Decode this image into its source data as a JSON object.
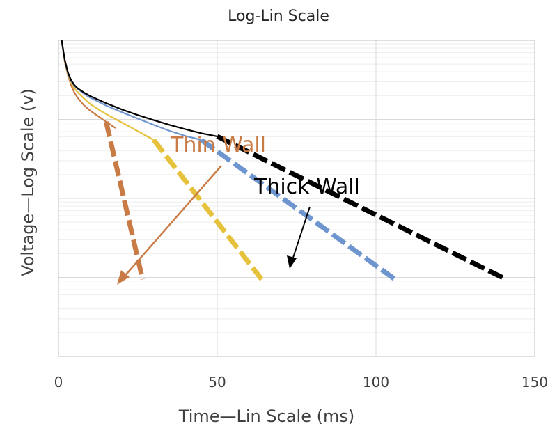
{
  "chart_data": {
    "type": "line",
    "title": "Log-Lin Scale",
    "xlabel": "Time—Lin Scale (ms)",
    "ylabel": "Voltage—Log Scale (v)",
    "xlim": [
      0,
      150
    ],
    "x_ticks": [
      "0",
      "50",
      "100",
      "150"
    ],
    "y_scale": "log",
    "y_decades": 4,
    "y_tick_labels_shown": false,
    "grid": true,
    "legend": "none",
    "colors": {
      "orange": "#c97b45",
      "yellow": "#e6c23c",
      "blue": "#6f95cf",
      "black": "#000000",
      "grid": "#d9d9d9",
      "minor_grid": "#eeeeee"
    },
    "series": [
      {
        "color": "orange",
        "curve": [
          [
            1,
            1.0
          ],
          [
            2,
            0.725
          ],
          [
            3,
            0.555
          ],
          [
            4,
            0.43
          ],
          [
            5,
            0.34
          ],
          [
            6,
            0.275
          ],
          [
            8,
            0.18
          ],
          [
            10,
            0.11
          ],
          [
            12,
            0.055
          ],
          [
            15,
            -0.03
          ],
          [
            18,
            -0.11
          ]
        ],
        "tail": [
          [
            15,
            -0.03
          ],
          [
            26.5,
            -2.025
          ]
        ]
      },
      {
        "color": "yellow",
        "curve": [
          [
            1,
            1.0
          ],
          [
            2,
            0.735
          ],
          [
            3,
            0.57
          ],
          [
            4,
            0.465
          ],
          [
            5,
            0.395
          ],
          [
            6,
            0.345
          ],
          [
            8,
            0.265
          ],
          [
            10,
            0.195
          ],
          [
            13,
            0.115
          ],
          [
            16,
            0.045
          ],
          [
            20,
            -0.04
          ],
          [
            25,
            -0.15
          ],
          [
            30,
            -0.26
          ]
        ],
        "tail": [
          [
            30,
            -0.26
          ],
          [
            64,
            -2.025
          ]
        ]
      },
      {
        "color": "blue",
        "curve": [
          [
            1,
            1.0
          ],
          [
            2,
            0.745
          ],
          [
            3,
            0.58
          ],
          [
            4,
            0.485
          ],
          [
            5,
            0.425
          ],
          [
            6,
            0.385
          ],
          [
            8,
            0.325
          ],
          [
            10,
            0.275
          ],
          [
            15,
            0.175
          ],
          [
            20,
            0.09
          ],
          [
            25,
            0.01
          ],
          [
            30,
            -0.07
          ],
          [
            35,
            -0.145
          ],
          [
            40,
            -0.21
          ],
          [
            45,
            -0.26
          ]
        ],
        "tail": [
          [
            45,
            -0.26
          ],
          [
            106,
            -2.025
          ]
        ]
      },
      {
        "color": "black",
        "curve": [
          [
            1,
            1.0
          ],
          [
            2,
            0.75
          ],
          [
            3,
            0.59
          ],
          [
            4,
            0.495
          ],
          [
            5,
            0.435
          ],
          [
            6,
            0.395
          ],
          [
            8,
            0.34
          ],
          [
            10,
            0.295
          ],
          [
            15,
            0.205
          ],
          [
            20,
            0.125
          ],
          [
            25,
            0.055
          ],
          [
            30,
            -0.01
          ],
          [
            35,
            -0.07
          ],
          [
            40,
            -0.125
          ],
          [
            45,
            -0.175
          ],
          [
            50,
            -0.215
          ]
        ],
        "tail": [
          [
            50,
            -0.215
          ],
          [
            141,
            -2.025
          ]
        ]
      }
    ],
    "annotations": [
      {
        "text": "Thin Wall",
        "color": "orange"
      },
      {
        "text": "Thick Wall",
        "color": "black"
      }
    ]
  }
}
